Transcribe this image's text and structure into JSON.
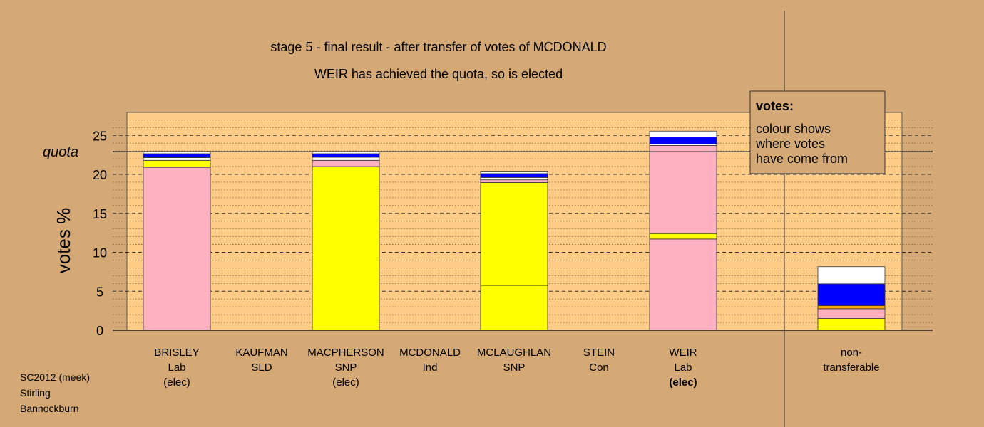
{
  "chart_data": {
    "type": "bar",
    "stacked": true,
    "title": "stage 5 - final result - after transfer of votes of MCDONALD",
    "subtitle": "WEIR has achieved the quota, so is elected",
    "ylabel": "votes %",
    "ylim": [
      0,
      28
    ],
    "yticks": [
      "0",
      "5",
      "10",
      "15",
      "20",
      "25"
    ],
    "quota": 22.9,
    "quota_label": "quota",
    "colors": {
      "pink": "#ffb0c0",
      "yellow": "#ffff00",
      "orange": "#ffa500",
      "blue": "#0000ff",
      "navy": "#000080",
      "white": "#ffffff",
      "plot_bg": "#ffcc88",
      "page_bg": "#d4a976"
    },
    "categories": [
      {
        "name": "BRISLEY",
        "party": "Lab",
        "status": "(elec)",
        "status_bold": false,
        "segments": [
          {
            "color": "pink",
            "value": 20.9
          },
          {
            "color": "yellow",
            "value": 0.9
          },
          {
            "color": "white",
            "value": 0.35
          },
          {
            "color": "blue",
            "value": 0.5
          },
          {
            "color": "white",
            "value": 0.25
          }
        ]
      },
      {
        "name": "KAUFMAN",
        "party": "SLD",
        "status": "",
        "status_bold": false,
        "segments": []
      },
      {
        "name": "MACPHERSON",
        "party": "SNP",
        "status": "(elec)",
        "status_bold": false,
        "segments": [
          {
            "color": "yellow",
            "value": 21.0
          },
          {
            "color": "pink",
            "value": 0.8
          },
          {
            "color": "white",
            "value": 0.4
          },
          {
            "color": "blue",
            "value": 0.45
          },
          {
            "color": "white",
            "value": 0.25
          }
        ]
      },
      {
        "name": "MCDONALD",
        "party": "Ind",
        "status": "",
        "status_bold": false,
        "segments": []
      },
      {
        "name": "MCLAUGHLAN",
        "party": "SNP",
        "status": "",
        "status_bold": false,
        "segments": [
          {
            "color": "yellow",
            "value": 5.75
          },
          {
            "color": "yellow",
            "value": 13.2
          },
          {
            "color": "pink",
            "value": 0.35
          },
          {
            "color": "white",
            "value": 0.3
          },
          {
            "color": "blue",
            "value": 0.5
          },
          {
            "color": "white",
            "value": 0.3
          }
        ]
      },
      {
        "name": "STEIN",
        "party": "Con",
        "status": "",
        "status_bold": false,
        "segments": []
      },
      {
        "name": "WEIR",
        "party": "Lab",
        "status": "(elec)",
        "status_bold": true,
        "segments": [
          {
            "color": "pink",
            "value": 11.7
          },
          {
            "color": "yellow",
            "value": 0.7
          },
          {
            "color": "pink",
            "value": 11.3
          },
          {
            "color": "white",
            "value": 0.2
          },
          {
            "color": "blue",
            "value": 0.9
          },
          {
            "color": "white",
            "value": 0.75
          }
        ]
      },
      {
        "name": "non-",
        "party": "transferable",
        "status": "",
        "status_bold": false,
        "segments": [
          {
            "color": "yellow",
            "value": 1.5
          },
          {
            "color": "pink",
            "value": 1.25
          },
          {
            "color": "orange",
            "value": 0.4
          },
          {
            "color": "blue",
            "value": 2.8
          },
          {
            "color": "white",
            "value": 2.2
          }
        ]
      }
    ],
    "legend": {
      "title": "votes:",
      "lines": [
        "colour shows",
        "where votes",
        "have come from"
      ]
    }
  },
  "footer": {
    "lines": [
      "SC2012 (meek)",
      "Stirling",
      "Bannockburn"
    ]
  }
}
